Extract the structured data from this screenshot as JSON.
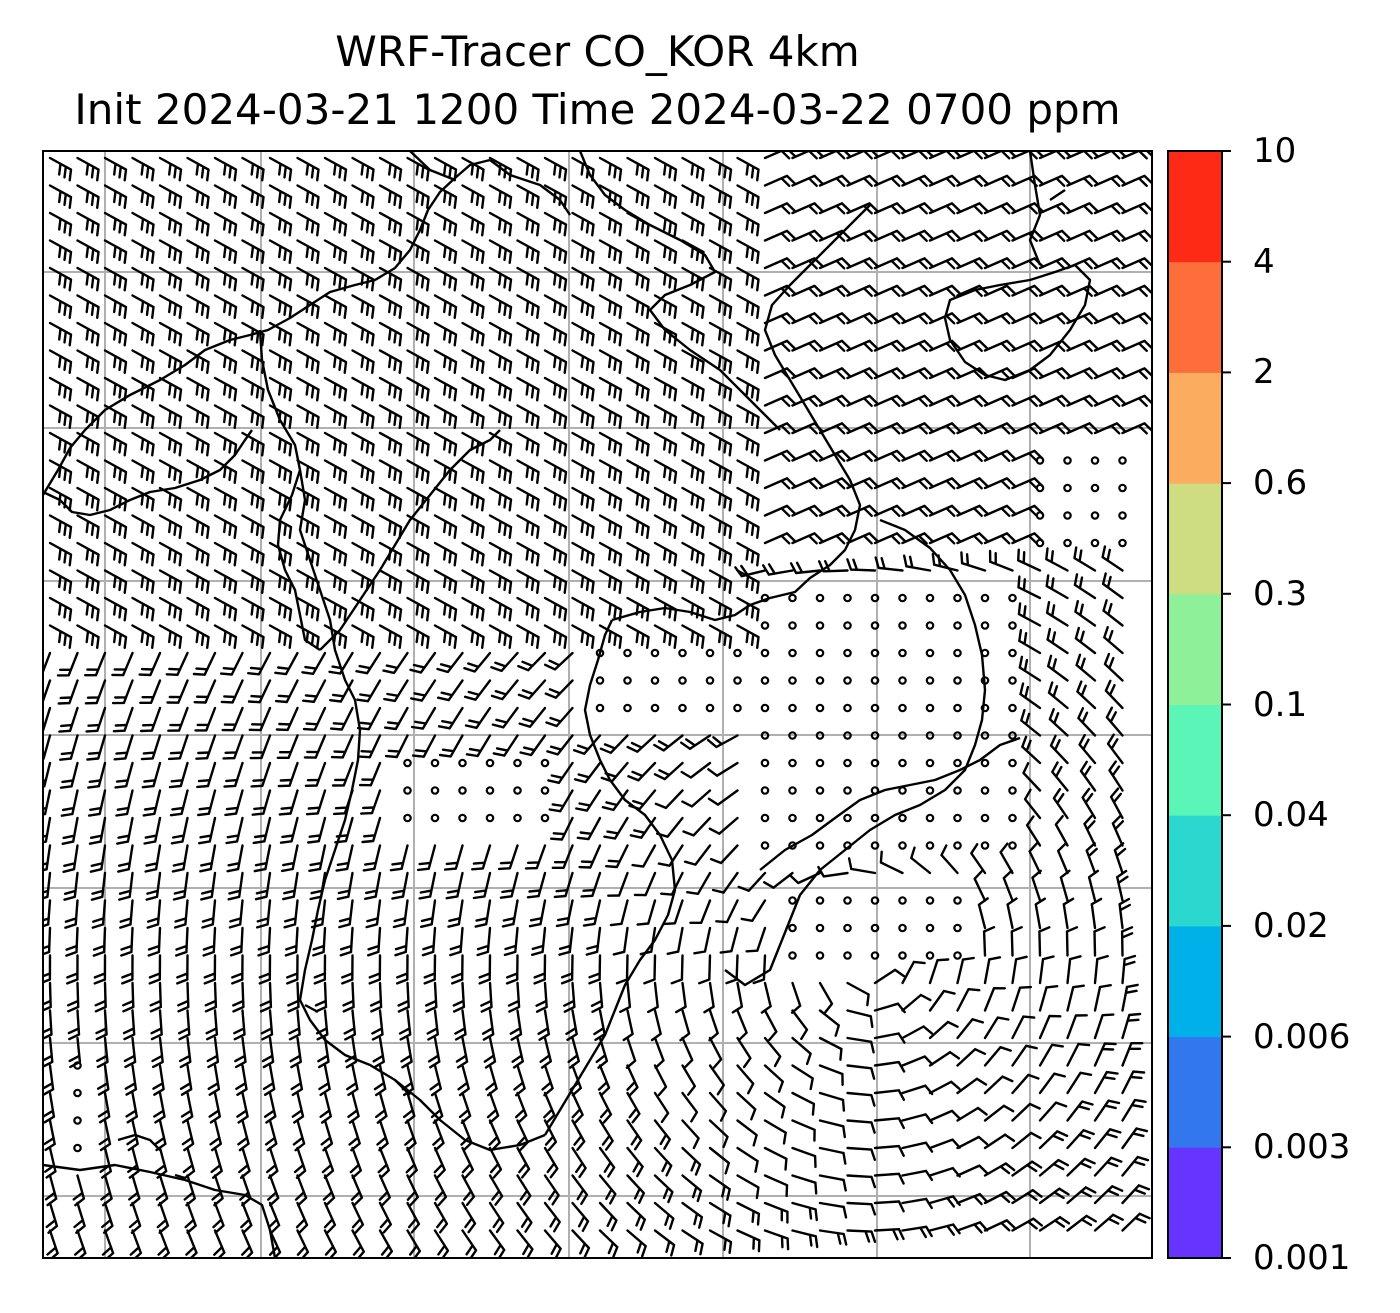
{
  "title": {
    "line1": "WRF-Tracer CO_KOR 4km",
    "line2": "Init 2024-03-21 1200 Time 2024-03-22 0700 ppm"
  },
  "colorbar": {
    "levels": [
      "0.001",
      "0.003",
      "0.006",
      "0.02",
      "0.04",
      "0.1",
      "0.3",
      "0.6",
      "2",
      "4",
      "10"
    ],
    "colors": [
      "#6633ff",
      "#3377ee",
      "#00b0e8",
      "#2ad8d0",
      "#5cf5b8",
      "#8ef098",
      "#cfdd82",
      "#fcac5e",
      "#fe6e3a",
      "#fe2a16"
    ]
  },
  "map": {
    "grid": "on",
    "gridline_color": "#b0b0b0",
    "wind_barbs": "on",
    "coastlines": "on"
  }
}
